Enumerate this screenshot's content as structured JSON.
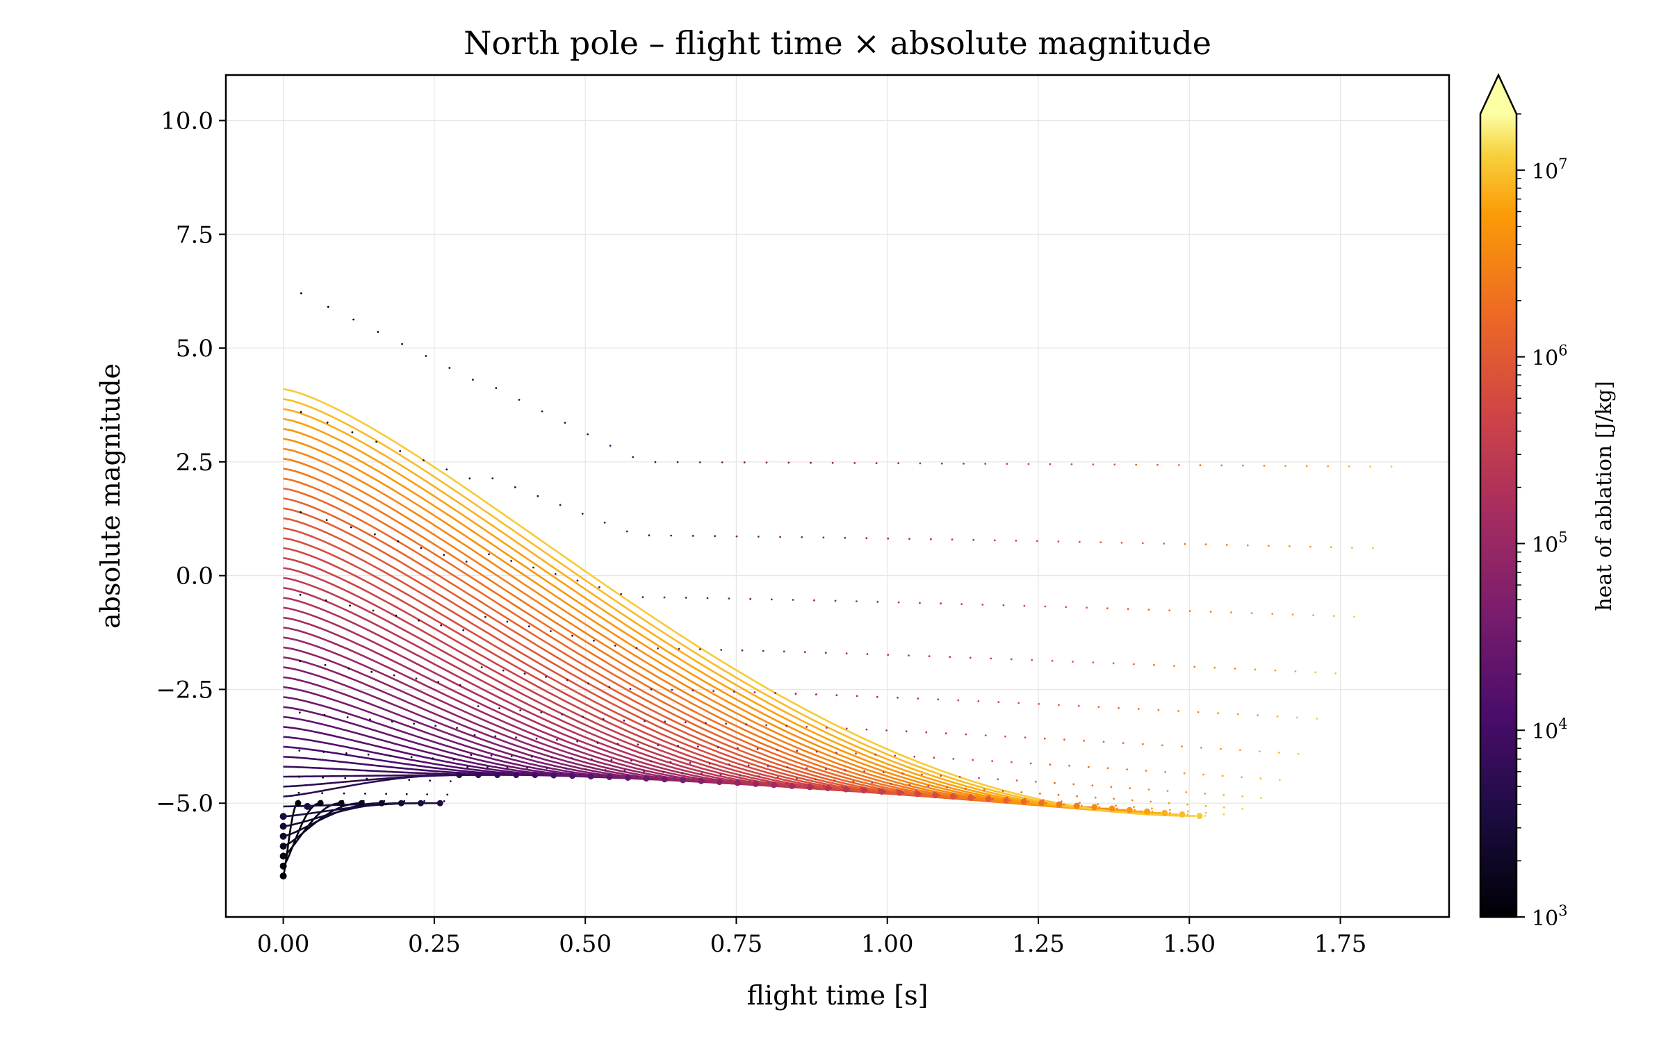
{
  "chart_data": {
    "type": "line",
    "title": "North pole – flight time × absolute magnitude",
    "xlabel": "flight time [s]",
    "ylabel": "absolute magnitude",
    "xlim": [
      -0.095,
      1.93
    ],
    "ylim": [
      -7.5,
      11.0
    ],
    "xticks": [
      "0.00",
      "0.25",
      "0.50",
      "0.75",
      "1.00",
      "1.25",
      "1.50",
      "1.75"
    ],
    "yticks": [
      "−5.0",
      "−2.5",
      "0.0",
      "2.5",
      "5.0",
      "7.5",
      "10.0"
    ],
    "grid": true,
    "series_description": "family of light curves, one per heat of ablation value",
    "series_count": 50,
    "heat_of_ablation_range": [
      1000,
      20000000
    ],
    "start_magnitude_range": [
      -6.6,
      4.1
    ],
    "end_time_range": [
      0.03,
      1.85
    ],
    "min_magnitude_range": [
      -6.6,
      -5.1
    ],
    "colormap": "inferno",
    "colorbar": {
      "label": "heat of ablation [J/kg]",
      "scale": "log",
      "range": [
        1000,
        20000000
      ],
      "extend": "max",
      "ticks": [
        {
          "base": "10",
          "exp": "3",
          "value": 1000
        },
        {
          "base": "10",
          "exp": "4",
          "value": 10000
        },
        {
          "base": "10",
          "exp": "5",
          "value": 100000
        },
        {
          "base": "10",
          "exp": "6",
          "value": 1000000
        },
        {
          "base": "10",
          "exp": "7",
          "value": 10000000
        }
      ]
    }
  }
}
